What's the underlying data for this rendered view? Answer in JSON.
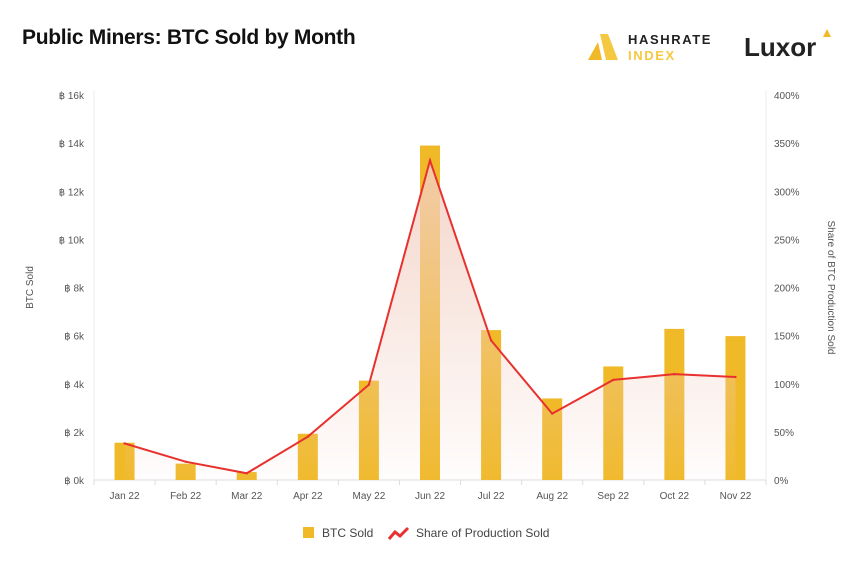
{
  "title": "Public Miners: BTC Sold by Month",
  "logos": {
    "hashrate_line1": "HASHRATE",
    "hashrate_line2": "INDEX",
    "luxor": "Luxor"
  },
  "colors": {
    "bar": "#f0b928",
    "line": "#e8312e",
    "area": "#f2cfc2",
    "grid": "#ececec",
    "text": "#555555"
  },
  "chart_data": {
    "type": "bar+line",
    "title": "Public Miners: BTC Sold by Month",
    "categories": [
      "Jan 22",
      "Feb 22",
      "Mar 22",
      "Apr 22",
      "May 22",
      "Jun 22",
      "Jul 22",
      "Aug 22",
      "Sep 22",
      "Oct 22",
      "Nov 22"
    ],
    "series": [
      {
        "name": "BTC Sold",
        "type": "bar",
        "axis": "left",
        "values": [
          1550,
          680,
          330,
          1920,
          4130,
          13900,
          6230,
          3390,
          4720,
          6280,
          5980
        ]
      },
      {
        "name": "Share of Production Sold",
        "type": "line-area",
        "axis": "right",
        "values": [
          38,
          19,
          7,
          45,
          99,
          332,
          145,
          69,
          104,
          110,
          107
        ]
      }
    ],
    "ylabel_left": "BTC Sold",
    "ylabel_right": "Share of BTC Production Sold",
    "ylim_left": [
      0,
      16000
    ],
    "ylim_right": [
      0,
      400
    ],
    "yticks_left": [
      "฿ 0k",
      "฿ 2k",
      "฿ 4k",
      "฿ 6k",
      "฿ 8k",
      "฿ 10k",
      "฿ 12k",
      "฿ 14k",
      "฿ 16k"
    ],
    "yticks_right": [
      "0%",
      "50%",
      "100%",
      "150%",
      "200%",
      "250%",
      "300%",
      "350%",
      "400%"
    ],
    "legend": {
      "position": "bottom",
      "items": [
        "BTC Sold",
        "Share of Production Sold"
      ]
    },
    "grid": false
  }
}
